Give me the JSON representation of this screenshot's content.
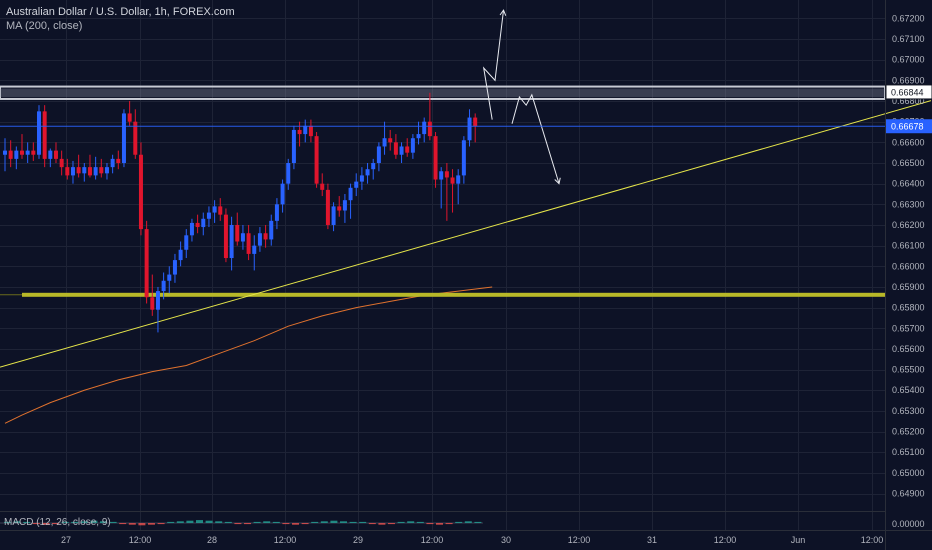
{
  "header": {
    "title": "Australian Dollar / U.S. Dollar, 1h, FOREX.com",
    "indicator": "MA (200, close)"
  },
  "chart_data": {
    "type": "candlestick",
    "yticks": [
      "0.67200",
      "0.67100",
      "0.67000",
      "0.66900",
      "0.66800",
      "0.66700",
      "0.66600",
      "0.66500",
      "0.66400",
      "0.66300",
      "0.66200",
      "0.66100",
      "0.66000",
      "0.65900",
      "0.65800",
      "0.65700",
      "0.65600",
      "0.65500",
      "0.65400",
      "0.65300",
      "0.65200",
      "0.65100",
      "0.65000",
      "0.64900"
    ],
    "ylim": [
      0.6483,
      0.6726
    ],
    "price_tags": [
      {
        "text": "0.66844",
        "value": 0.66844,
        "style": "outline"
      },
      {
        "text": "0.66678",
        "value": 0.66678,
        "style": "filled",
        "color": "#2962ff"
      }
    ],
    "xticks": [
      "27",
      "12:00",
      "28",
      "12:00",
      "29",
      "12:00",
      "30",
      "12:00",
      "31",
      "12:00",
      "Jun",
      "12:00"
    ],
    "candles": [
      {
        "o": 0.6654,
        "h": 0.6662,
        "l": 0.6646,
        "c": 0.6656
      },
      {
        "o": 0.6656,
        "h": 0.6661,
        "l": 0.6648,
        "c": 0.6652
      },
      {
        "o": 0.6652,
        "h": 0.6658,
        "l": 0.6647,
        "c": 0.6656
      },
      {
        "o": 0.6656,
        "h": 0.6664,
        "l": 0.6652,
        "c": 0.6654
      },
      {
        "o": 0.6654,
        "h": 0.666,
        "l": 0.665,
        "c": 0.6656
      },
      {
        "o": 0.6656,
        "h": 0.666,
        "l": 0.6651,
        "c": 0.6654
      },
      {
        "o": 0.6654,
        "h": 0.6678,
        "l": 0.6652,
        "c": 0.6675
      },
      {
        "o": 0.6675,
        "h": 0.6678,
        "l": 0.6648,
        "c": 0.6652
      },
      {
        "o": 0.6652,
        "h": 0.6657,
        "l": 0.6648,
        "c": 0.6656
      },
      {
        "o": 0.6656,
        "h": 0.666,
        "l": 0.665,
        "c": 0.6652
      },
      {
        "o": 0.6652,
        "h": 0.6656,
        "l": 0.6644,
        "c": 0.6648
      },
      {
        "o": 0.6648,
        "h": 0.6652,
        "l": 0.6642,
        "c": 0.6644
      },
      {
        "o": 0.6644,
        "h": 0.6651,
        "l": 0.664,
        "c": 0.6648
      },
      {
        "o": 0.6648,
        "h": 0.6654,
        "l": 0.6643,
        "c": 0.6645
      },
      {
        "o": 0.6645,
        "h": 0.665,
        "l": 0.6641,
        "c": 0.6648
      },
      {
        "o": 0.6648,
        "h": 0.6654,
        "l": 0.6643,
        "c": 0.6644
      },
      {
        "o": 0.6644,
        "h": 0.6653,
        "l": 0.6642,
        "c": 0.6648
      },
      {
        "o": 0.6648,
        "h": 0.6652,
        "l": 0.6643,
        "c": 0.6645
      },
      {
        "o": 0.6645,
        "h": 0.665,
        "l": 0.6642,
        "c": 0.6648
      },
      {
        "o": 0.6648,
        "h": 0.6654,
        "l": 0.6645,
        "c": 0.6652
      },
      {
        "o": 0.6652,
        "h": 0.6656,
        "l": 0.6647,
        "c": 0.665
      },
      {
        "o": 0.665,
        "h": 0.6676,
        "l": 0.6648,
        "c": 0.6674
      },
      {
        "o": 0.6674,
        "h": 0.668,
        "l": 0.6668,
        "c": 0.667
      },
      {
        "o": 0.667,
        "h": 0.6676,
        "l": 0.6652,
        "c": 0.6654
      },
      {
        "o": 0.6654,
        "h": 0.666,
        "l": 0.6615,
        "c": 0.6618
      },
      {
        "o": 0.6618,
        "h": 0.6622,
        "l": 0.6582,
        "c": 0.6585
      },
      {
        "o": 0.6585,
        "h": 0.6596,
        "l": 0.6576,
        "c": 0.6579
      },
      {
        "o": 0.6579,
        "h": 0.659,
        "l": 0.6568,
        "c": 0.6588
      },
      {
        "o": 0.6588,
        "h": 0.6597,
        "l": 0.6584,
        "c": 0.6593
      },
      {
        "o": 0.6593,
        "h": 0.66,
        "l": 0.6587,
        "c": 0.6596
      },
      {
        "o": 0.6596,
        "h": 0.6606,
        "l": 0.6592,
        "c": 0.6603
      },
      {
        "o": 0.6603,
        "h": 0.6612,
        "l": 0.66,
        "c": 0.6608
      },
      {
        "o": 0.6608,
        "h": 0.6618,
        "l": 0.6604,
        "c": 0.6615
      },
      {
        "o": 0.6615,
        "h": 0.6623,
        "l": 0.6612,
        "c": 0.6621
      },
      {
        "o": 0.6621,
        "h": 0.6625,
        "l": 0.6616,
        "c": 0.6619
      },
      {
        "o": 0.6619,
        "h": 0.6626,
        "l": 0.6615,
        "c": 0.6623
      },
      {
        "o": 0.6623,
        "h": 0.6629,
        "l": 0.6619,
        "c": 0.6626
      },
      {
        "o": 0.6626,
        "h": 0.6632,
        "l": 0.6621,
        "c": 0.6629
      },
      {
        "o": 0.6629,
        "h": 0.6633,
        "l": 0.6622,
        "c": 0.6625
      },
      {
        "o": 0.6625,
        "h": 0.6628,
        "l": 0.6602,
        "c": 0.6604
      },
      {
        "o": 0.6604,
        "h": 0.6624,
        "l": 0.6598,
        "c": 0.662
      },
      {
        "o": 0.662,
        "h": 0.6626,
        "l": 0.661,
        "c": 0.6612
      },
      {
        "o": 0.6612,
        "h": 0.662,
        "l": 0.6608,
        "c": 0.6616
      },
      {
        "o": 0.6616,
        "h": 0.662,
        "l": 0.6603,
        "c": 0.6606
      },
      {
        "o": 0.6606,
        "h": 0.6615,
        "l": 0.6598,
        "c": 0.661
      },
      {
        "o": 0.661,
        "h": 0.6619,
        "l": 0.6607,
        "c": 0.6616
      },
      {
        "o": 0.6616,
        "h": 0.662,
        "l": 0.6609,
        "c": 0.6613
      },
      {
        "o": 0.6613,
        "h": 0.6625,
        "l": 0.661,
        "c": 0.6622
      },
      {
        "o": 0.6622,
        "h": 0.6633,
        "l": 0.6618,
        "c": 0.663
      },
      {
        "o": 0.663,
        "h": 0.6642,
        "l": 0.6626,
        "c": 0.664
      },
      {
        "o": 0.664,
        "h": 0.6652,
        "l": 0.6637,
        "c": 0.665
      },
      {
        "o": 0.665,
        "h": 0.6668,
        "l": 0.6647,
        "c": 0.6666
      },
      {
        "o": 0.6666,
        "h": 0.667,
        "l": 0.6658,
        "c": 0.6664
      },
      {
        "o": 0.6664,
        "h": 0.6671,
        "l": 0.666,
        "c": 0.6668
      },
      {
        "o": 0.6668,
        "h": 0.6671,
        "l": 0.666,
        "c": 0.6663
      },
      {
        "o": 0.6663,
        "h": 0.6665,
        "l": 0.6638,
        "c": 0.664
      },
      {
        "o": 0.664,
        "h": 0.6645,
        "l": 0.6634,
        "c": 0.6637
      },
      {
        "o": 0.6637,
        "h": 0.664,
        "l": 0.6618,
        "c": 0.662
      },
      {
        "o": 0.662,
        "h": 0.6631,
        "l": 0.6617,
        "c": 0.6629
      },
      {
        "o": 0.6629,
        "h": 0.6634,
        "l": 0.6624,
        "c": 0.6627
      },
      {
        "o": 0.6627,
        "h": 0.6635,
        "l": 0.6621,
        "c": 0.6632
      },
      {
        "o": 0.6632,
        "h": 0.664,
        "l": 0.6623,
        "c": 0.6638
      },
      {
        "o": 0.6638,
        "h": 0.6645,
        "l": 0.6634,
        "c": 0.6641
      },
      {
        "o": 0.6641,
        "h": 0.6648,
        "l": 0.6637,
        "c": 0.6644
      },
      {
        "o": 0.6644,
        "h": 0.665,
        "l": 0.664,
        "c": 0.6647
      },
      {
        "o": 0.6647,
        "h": 0.6652,
        "l": 0.6642,
        "c": 0.665
      },
      {
        "o": 0.665,
        "h": 0.666,
        "l": 0.6646,
        "c": 0.6658
      },
      {
        "o": 0.6658,
        "h": 0.667,
        "l": 0.6654,
        "c": 0.6662
      },
      {
        "o": 0.6662,
        "h": 0.6666,
        "l": 0.6656,
        "c": 0.666
      },
      {
        "o": 0.666,
        "h": 0.6664,
        "l": 0.6652,
        "c": 0.6654
      },
      {
        "o": 0.6654,
        "h": 0.666,
        "l": 0.665,
        "c": 0.6658
      },
      {
        "o": 0.6658,
        "h": 0.6662,
        "l": 0.6653,
        "c": 0.6655
      },
      {
        "o": 0.6655,
        "h": 0.6664,
        "l": 0.6652,
        "c": 0.6662
      },
      {
        "o": 0.6662,
        "h": 0.667,
        "l": 0.6659,
        "c": 0.6664
      },
      {
        "o": 0.6664,
        "h": 0.6672,
        "l": 0.666,
        "c": 0.667
      },
      {
        "o": 0.667,
        "h": 0.6684,
        "l": 0.6661,
        "c": 0.6663
      },
      {
        "o": 0.6663,
        "h": 0.6665,
        "l": 0.6638,
        "c": 0.6642
      },
      {
        "o": 0.6642,
        "h": 0.6648,
        "l": 0.6628,
        "c": 0.6646
      },
      {
        "o": 0.6646,
        "h": 0.665,
        "l": 0.6622,
        "c": 0.6643
      },
      {
        "o": 0.6643,
        "h": 0.6647,
        "l": 0.6626,
        "c": 0.664
      },
      {
        "o": 0.664,
        "h": 0.6647,
        "l": 0.663,
        "c": 0.6644
      },
      {
        "o": 0.6644,
        "h": 0.6663,
        "l": 0.664,
        "c": 0.6661
      },
      {
        "o": 0.6661,
        "h": 0.6676,
        "l": 0.6658,
        "c": 0.6672
      },
      {
        "o": 0.6672,
        "h": 0.6674,
        "l": 0.666,
        "c": 0.66678
      }
    ],
    "ma200": [
      [
        0,
        0.6524
      ],
      [
        3,
        0.6528
      ],
      [
        8,
        0.6534
      ],
      [
        14,
        0.654
      ],
      [
        20,
        0.6545
      ],
      [
        26,
        0.6549
      ],
      [
        32,
        0.6552
      ],
      [
        38,
        0.6558
      ],
      [
        44,
        0.6564
      ],
      [
        50,
        0.6571
      ],
      [
        56,
        0.6576
      ],
      [
        62,
        0.658
      ],
      [
        68,
        0.6583
      ],
      [
        74,
        0.6586
      ],
      [
        80,
        0.6588
      ],
      [
        86,
        0.659
      ]
    ],
    "support_level": 0.65862,
    "resistance_band": [
      0.6681,
      0.6687
    ],
    "trendline": [
      [
        0.0,
        0.65512
      ],
      [
        931.0,
        0.66802
      ]
    ],
    "arrows": [
      {
        "points": [
          [
            86,
            0.6671
          ],
          [
            84.5,
            0.6696
          ],
          [
            86.5,
            0.669
          ],
          [
            88,
            0.6724
          ]
        ]
      },
      {
        "points": [
          [
            89.5,
            0.6669
          ],
          [
            90.8,
            0.6682
          ],
          [
            92,
            0.6678
          ],
          [
            93,
            0.6683
          ],
          [
            97.8,
            0.664
          ]
        ]
      }
    ],
    "macd": {
      "label": "MACD (12, 26, close, 9)",
      "ytick": "0.00000",
      "pattern": [
        1,
        2,
        1,
        -1,
        -2,
        -1,
        1,
        1,
        2,
        3,
        2,
        1,
        -1,
        -2,
        -3,
        -2,
        -1,
        1,
        2,
        3,
        4,
        3,
        2,
        1,
        -1,
        -1,
        1,
        2,
        1,
        -1,
        -2,
        -1,
        1,
        2,
        3,
        2,
        1,
        1,
        -1,
        -2,
        -1,
        1,
        2,
        1,
        -1,
        -2,
        -1,
        1,
        2,
        1
      ]
    },
    "grid": true,
    "colors": {
      "background": "#0d1226",
      "up": "#2962ff",
      "down": "#e0152d",
      "ma": "#e0722e",
      "trendline": "#e6e64a",
      "support": "#b8b828",
      "resistance": "#c8cbd4",
      "arrow": "#e8eaf0",
      "grid": "#1e2336",
      "text": "#b2b5be"
    }
  }
}
